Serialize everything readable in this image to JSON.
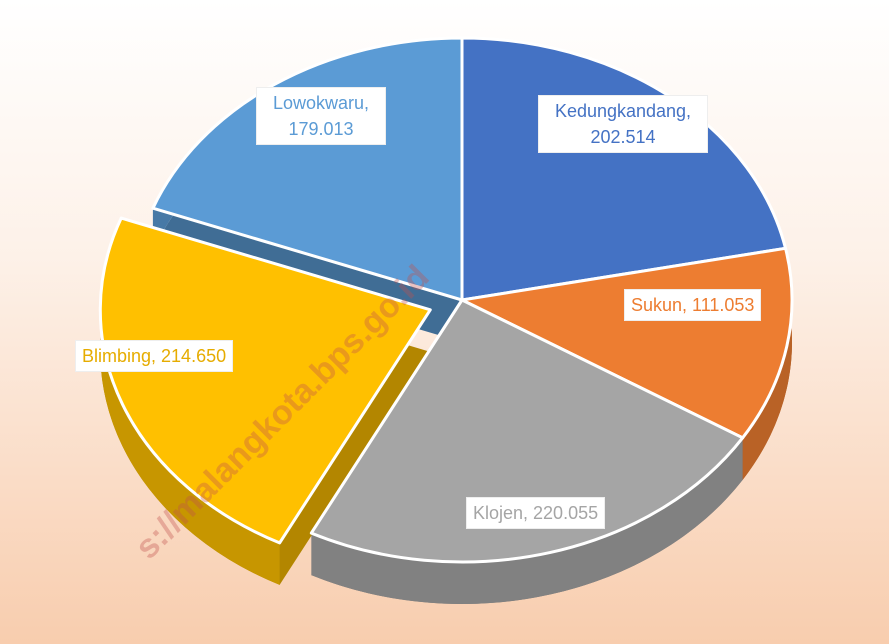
{
  "chart_data": {
    "type": "pie",
    "value_labels": [
      "Kedungkandang, 202.514",
      "Sukun, 111.053",
      "Klojen, 220.055",
      "Blimbing, 214.650",
      "Lowokwaru, 179.013"
    ],
    "values": [
      202.514,
      111.053,
      220.055,
      214.65,
      179.013
    ],
    "colors": [
      "#4472c4",
      "#ed7d31",
      "#a5a5a5",
      "#ffc000",
      "#5b9bd5"
    ],
    "label_colors": [
      "#4472c4",
      "#ed7d31",
      "#a5a5a5",
      "#e6ac00",
      "#5b9bd5"
    ],
    "exploded": [
      3
    ],
    "watermark": "s://malangkota.bps.go.id"
  }
}
